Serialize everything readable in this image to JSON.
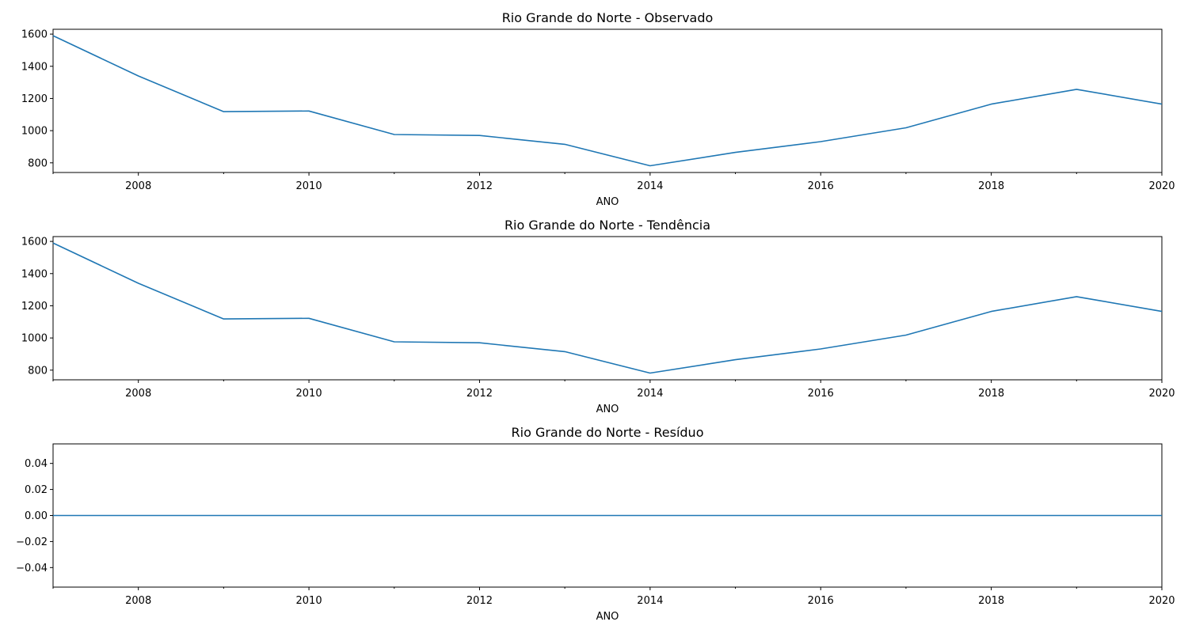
{
  "chart_data": [
    {
      "type": "line",
      "title": "Rio Grande do Norte - Observado",
      "xlabel": "ANO",
      "ylabel": "",
      "x": [
        2007,
        2008,
        2009,
        2010,
        2011,
        2012,
        2013,
        2014,
        2015,
        2016,
        2017,
        2018,
        2019,
        2020
      ],
      "values": [
        1590,
        1340,
        1118,
        1122,
        976,
        970,
        915,
        782,
        865,
        932,
        1018,
        1165,
        1257,
        1165
      ],
      "xlim": [
        2007,
        2020
      ],
      "ylim": [
        740,
        1630
      ],
      "xticks": [
        "2008",
        "2010",
        "2012",
        "2014",
        "2016",
        "2018",
        "2020"
      ],
      "yticks": [
        "800",
        "1000",
        "1200",
        "1400",
        "1600"
      ],
      "grid": false
    },
    {
      "type": "line",
      "title": "Rio Grande do Norte - Tendência",
      "xlabel": "ANO",
      "ylabel": "",
      "x": [
        2007,
        2008,
        2009,
        2010,
        2011,
        2012,
        2013,
        2014,
        2015,
        2016,
        2017,
        2018,
        2019,
        2020
      ],
      "values": [
        1590,
        1340,
        1118,
        1122,
        976,
        970,
        915,
        782,
        865,
        932,
        1018,
        1165,
        1257,
        1165
      ],
      "xlim": [
        2007,
        2020
      ],
      "ylim": [
        740,
        1630
      ],
      "xticks": [
        "2008",
        "2010",
        "2012",
        "2014",
        "2016",
        "2018",
        "2020"
      ],
      "yticks": [
        "800",
        "1000",
        "1200",
        "1400",
        "1600"
      ],
      "grid": false
    },
    {
      "type": "line",
      "title": "Rio Grande do Norte - Resíduo",
      "xlabel": "ANO",
      "ylabel": "",
      "x": [
        2007,
        2008,
        2009,
        2010,
        2011,
        2012,
        2013,
        2014,
        2015,
        2016,
        2017,
        2018,
        2019,
        2020
      ],
      "values": [
        0,
        0,
        0,
        0,
        0,
        0,
        0,
        0,
        0,
        0,
        0,
        0,
        0,
        0
      ],
      "xlim": [
        2007,
        2020
      ],
      "ylim": [
        -0.055,
        0.055
      ],
      "xticks": [
        "2008",
        "2010",
        "2012",
        "2014",
        "2016",
        "2018",
        "2020"
      ],
      "yticks": [
        "0.04",
        "0.02",
        "0.00",
        "−0.02",
        "−0.04"
      ],
      "grid": false
    }
  ],
  "colors": {
    "line": "#1f77b4",
    "axes": "#000000",
    "background": "#ffffff"
  }
}
